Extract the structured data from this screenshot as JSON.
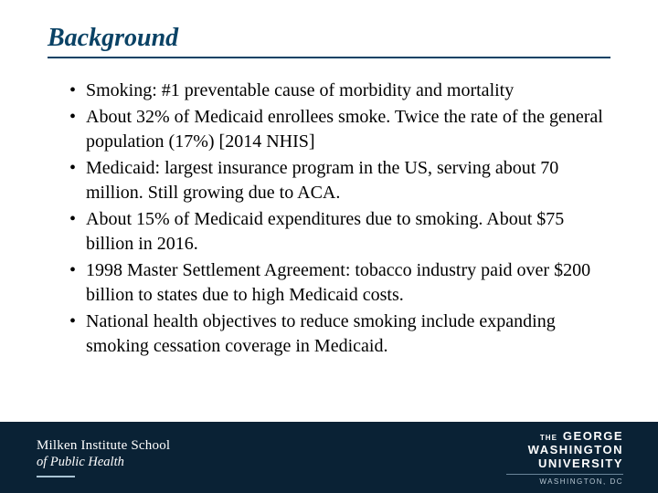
{
  "title": "Background",
  "bullets": [
    "Smoking: #1 preventable cause of morbidity and mortality",
    "About 32% of Medicaid enrollees smoke.  Twice the rate of the general population (17%) [2014 NHIS]",
    "Medicaid: largest insurance program in the US, serving about 70 million.  Still growing due to ACA.",
    "About 15% of Medicaid expenditures due to smoking.  About $75 billion in 2016.",
    "1998 Master Settlement Agreement: tobacco industry paid over $200 billion to states due to high Medicaid costs.",
    "National health objectives to reduce smoking include expanding smoking cessation coverage in Medicaid."
  ],
  "footer": {
    "left_line1": "Milken Institute School",
    "left_line2": "of Public Health",
    "right_the": "THE",
    "right_george": "GEORGE",
    "right_wash": "WASHINGTON",
    "right_univ": "UNIVERSITY",
    "right_city": "WASHINGTON, DC"
  },
  "colors": {
    "title_color": "#0a4265",
    "footer_bg": "#0a2235",
    "text": "#000000",
    "white": "#ffffff"
  }
}
